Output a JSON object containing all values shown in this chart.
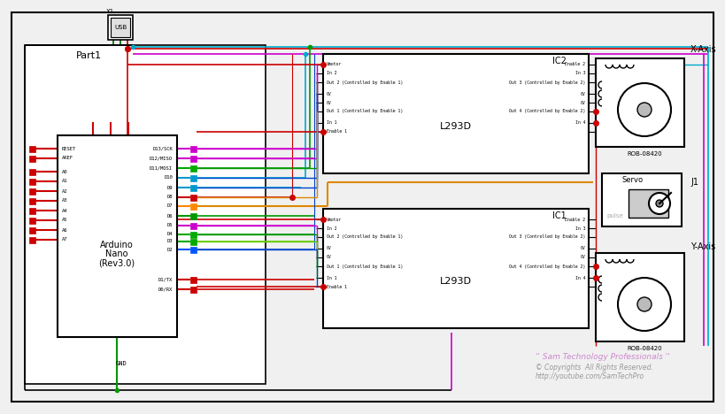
{
  "bg_color": "#f0f0f0",
  "watermark1": "'' Sam Technology Professionals ''",
  "watermark2": "© Copyrights  All Rights Reserved.",
  "watermark3": "http://youtube.com/SamTechPro",
  "part1_label": "Part1",
  "arduino_label": [
    "Arduino",
    "Nano",
    "(Rev3.0)"
  ],
  "ic2_label": "IC2",
  "ic1_label": "IC1",
  "l293d_label": "L293D",
  "rob_x_label": "ROB-08420",
  "x_axis_label": "X-Axis",
  "rob_y_label": "ROB-08420",
  "y_axis_label": "Y-Axis",
  "servo_label": "Servo",
  "j1_label": "J1",
  "usb_label": "USB",
  "x1_label": "X1",
  "gnd_label": "GND"
}
